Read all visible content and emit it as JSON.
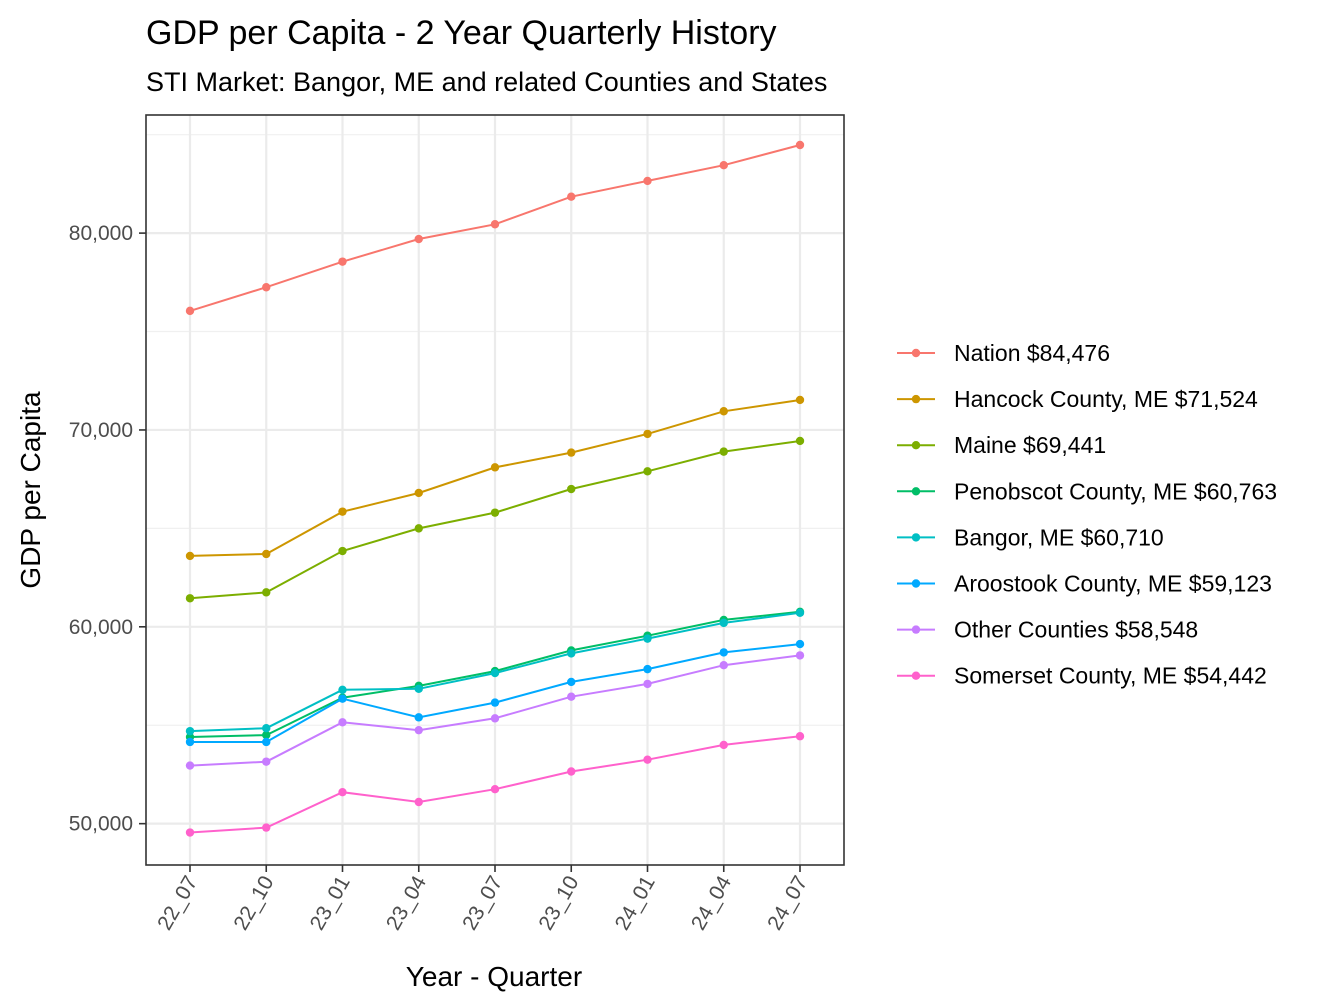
{
  "chart_data": {
    "type": "line",
    "title": "GDP per Capita - 2 Year Quarterly History",
    "subtitle": "STI Market: Bangor, ME and related Counties and States",
    "xlabel": "Year - Quarter",
    "ylabel": "GDP per Capita",
    "categories": [
      "22_07",
      "22_10",
      "23_01",
      "23_04",
      "23_07",
      "23_10",
      "24_01",
      "24_04",
      "24_07"
    ],
    "ylim": [
      47900,
      86000
    ],
    "yticks": [
      50000,
      60000,
      70000,
      80000
    ],
    "ytick_labels": [
      "50,000",
      "60,000",
      "70,000",
      "80,000"
    ],
    "grid": true,
    "legend_position": "right",
    "series": [
      {
        "name": "Nation $84,476",
        "color": "#F8766D",
        "values": [
          76050,
          77250,
          78550,
          79700,
          80450,
          81850,
          82650,
          83450,
          84476
        ]
      },
      {
        "name": "Hancock County, ME $71,524",
        "color": "#CD9600",
        "values": [
          63600,
          63700,
          65850,
          66800,
          68100,
          68850,
          69800,
          70950,
          71524
        ]
      },
      {
        "name": "Maine $69,441",
        "color": "#7CAE00",
        "values": [
          61450,
          61750,
          63850,
          65000,
          65800,
          67000,
          67900,
          68900,
          69441
        ]
      },
      {
        "name": "Penobscot County, ME $60,763",
        "color": "#00BE67",
        "values": [
          54400,
          54500,
          56400,
          57000,
          57750,
          58800,
          59550,
          60350,
          60763
        ]
      },
      {
        "name": "Bangor, ME $60,710",
        "color": "#00BFC4",
        "values": [
          54700,
          54850,
          56800,
          56850,
          57650,
          58650,
          59400,
          60200,
          60710
        ]
      },
      {
        "name": "Aroostook County, ME $59,123",
        "color": "#00A9FF",
        "values": [
          54150,
          54150,
          56350,
          55400,
          56150,
          57200,
          57850,
          58700,
          59123
        ]
      },
      {
        "name": "Other Counties $58,548",
        "color": "#C77CFF",
        "values": [
          52950,
          53150,
          55150,
          54750,
          55350,
          56450,
          57100,
          58050,
          58548
        ]
      },
      {
        "name": "Somerset County, ME $54,442",
        "color": "#FF61CC",
        "values": [
          49550,
          49800,
          51600,
          51100,
          51750,
          52650,
          53250,
          54000,
          54442
        ]
      }
    ]
  }
}
